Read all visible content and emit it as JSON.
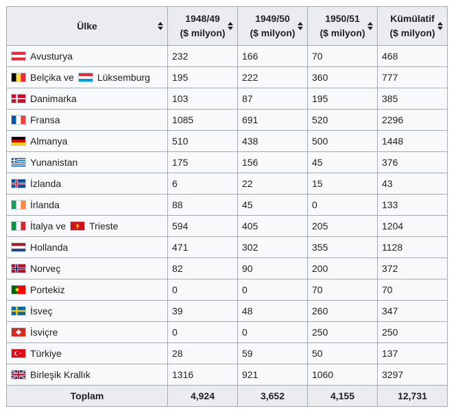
{
  "headers": {
    "country": "Ülke",
    "y1948": [
      "1948/49",
      "($ milyon)"
    ],
    "y1949": [
      "1949/50",
      "($ milyon)"
    ],
    "y1950": [
      "1950/51",
      "($ milyon)"
    ],
    "cum": [
      "Kümülatif",
      "($ milyon)"
    ]
  },
  "rows": [
    {
      "name": "Avusturya",
      "v1": "232",
      "v2": "166",
      "v3": "70",
      "v4": "468"
    },
    {
      "name": "Belçika ve",
      "name2": "Lüksemburg",
      "v1": "195",
      "v2": "222",
      "v3": "360",
      "v4": "777"
    },
    {
      "name": "Danimarka",
      "v1": "103",
      "v2": "87",
      "v3": "195",
      "v4": "385"
    },
    {
      "name": "Fransa",
      "v1": "1085",
      "v2": "691",
      "v3": "520",
      "v4": "2296"
    },
    {
      "name": "Almanya",
      "v1": "510",
      "v2": "438",
      "v3": "500",
      "v4": "1448"
    },
    {
      "name": "Yunanistan",
      "v1": "175",
      "v2": "156",
      "v3": "45",
      "v4": "376"
    },
    {
      "name": "İzlanda",
      "v1": "6",
      "v2": "22",
      "v3": "15",
      "v4": "43"
    },
    {
      "name": "İrlanda",
      "v1": "88",
      "v2": "45",
      "v3": "0",
      "v4": "133"
    },
    {
      "name": "İtalya ve",
      "name2": "Trieste",
      "v1": "594",
      "v2": "405",
      "v3": "205",
      "v4": "1204"
    },
    {
      "name": "Hollanda",
      "v1": "471",
      "v2": "302",
      "v3": "355",
      "v4": "1128"
    },
    {
      "name": "Norveç",
      "v1": "82",
      "v2": "90",
      "v3": "200",
      "v4": "372"
    },
    {
      "name": "Portekiz",
      "v1": "0",
      "v2": "0",
      "v3": "70",
      "v4": "70"
    },
    {
      "name": "İsveç",
      "v1": "39",
      "v2": "48",
      "v3": "260",
      "v4": "347"
    },
    {
      "name": "İsviçre",
      "v1": "0",
      "v2": "0",
      "v3": "250",
      "v4": "250"
    },
    {
      "name": "Türkiye",
      "v1": "28",
      "v2": "59",
      "v3": "50",
      "v4": "137"
    },
    {
      "name": "Birleşik Krallık",
      "v1": "1316",
      "v2": "921",
      "v3": "1060",
      "v4": "3297"
    }
  ],
  "total": {
    "label": "Toplam",
    "v1": "4,924",
    "v2": "3,652",
    "v3": "4,155",
    "v4": "12,731"
  },
  "flag_icons": [
    "austria-flag-icon",
    "belgium-flag-icon",
    "luxembourg-flag-icon",
    "denmark-flag-icon",
    "france-flag-icon",
    "germany-flag-icon",
    "greece-flag-icon",
    "iceland-flag-icon",
    "ireland-flag-icon",
    "italy-flag-icon",
    "trieste-flag-icon",
    "netherlands-flag-icon",
    "norway-flag-icon",
    "portugal-flag-icon",
    "sweden-flag-icon",
    "switzerland-flag-icon",
    "turkey-flag-icon",
    "united-kingdom-flag-icon"
  ],
  "colors": {
    "header_bg": "#eaecf0",
    "cell_bg": "#f8f9fa",
    "border": "#a2a9b1",
    "text": "#202122"
  }
}
